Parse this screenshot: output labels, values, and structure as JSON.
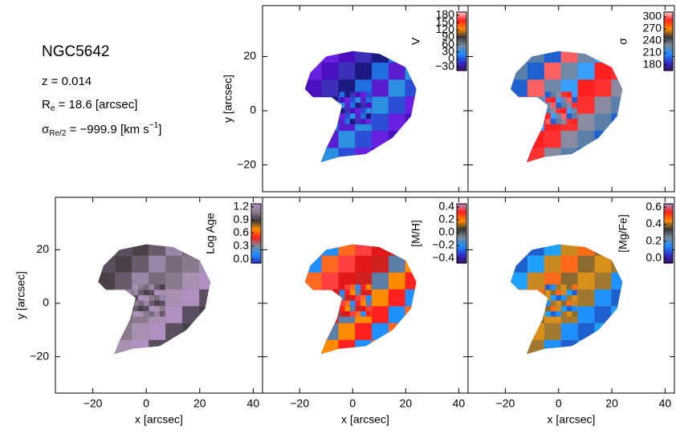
{
  "info": {
    "name": "NGC5642",
    "z": "z = 0.014",
    "re": {
      "symbol": "R",
      "sub": "e",
      "text": " = 18.6 [arcsec]"
    },
    "sigma": {
      "symbol": "σ",
      "sub": "Re/2",
      "text": " = −999.9 [km s",
      "sup": "−1",
      "end": "]"
    }
  },
  "chart_data": [
    {
      "type": "map",
      "colorbar_label": "V",
      "ylabel": "y [arcsec]",
      "xlim": [
        -34,
        43.5
      ],
      "ylim": [
        -29.9,
        38.8
      ],
      "xticks": [
        -20,
        0,
        20,
        40
      ],
      "yticks": [
        {
          "value": -20,
          "label": "−20"
        },
        0,
        20
      ],
      "show_xticklabels": false,
      "show_yticklabels": true,
      "clim": [
        -46,
        193
      ],
      "cticks": [
        {
          "value": -30,
          "label": "−30"
        },
        0,
        30,
        60,
        90,
        120,
        150,
        180
      ],
      "colormap": [
        "#3d0b6e",
        "#2f2fc8",
        "#1e90ff",
        "#7a8a9a",
        "#3a3a3a",
        "#ff8c00",
        "#ff2020",
        "#ffd0d0"
      ]
    },
    {
      "type": "map",
      "colorbar_label": "σ",
      "xlim": [
        -34,
        43.5
      ],
      "ylim": [
        -29.9,
        38.8
      ],
      "xticks": [
        -20,
        0,
        20,
        40
      ],
      "yticks": [
        -20,
        0,
        20
      ],
      "show_xticklabels": false,
      "show_yticklabels": false,
      "clim": [
        166,
        312
      ],
      "cticks": [
        180,
        210,
        240,
        270,
        300
      ],
      "colormap": [
        "#3d0b6e",
        "#2f2fc8",
        "#1e90ff",
        "#7a8a9a",
        "#3a3a3a",
        "#ff8c00",
        "#ff2020",
        "#ffd0d0"
      ]
    },
    {
      "type": "map",
      "colorbar_label": "Log Age",
      "xlabel": "x [arcsec]",
      "ylabel": "y [arcsec]",
      "xlim": [
        -34,
        43.5
      ],
      "ylim": [
        -33.6,
        39.6
      ],
      "xticks": [
        {
          "value": -20,
          "label": "−20"
        },
        0,
        20,
        40
      ],
      "yticks": [
        {
          "value": -20,
          "label": "−20"
        },
        0,
        20
      ],
      "show_xticklabels": true,
      "show_yticklabels": true,
      "clim": [
        -0.09,
        1.27
      ],
      "cticks": [
        {
          "value": 0,
          "label": "0.0"
        },
        0.3,
        0.6,
        0.9,
        1.2
      ],
      "colormap": [
        "#2f2fc8",
        "#1e90ff",
        "#7a8a9a",
        "#ff2020",
        "#ff8c00",
        "#3a3a3a",
        "#8a7a8c",
        "#b090c0"
      ]
    },
    {
      "type": "map",
      "colorbar_label": "[M/H]",
      "xlabel": "x [arcsec]",
      "xlim": [
        -34,
        43.5
      ],
      "ylim": [
        -33.6,
        39.6
      ],
      "xticks": [
        {
          "value": -20,
          "label": "−20"
        },
        0,
        20,
        40
      ],
      "yticks": [
        -20,
        0,
        20
      ],
      "show_xticklabels": true,
      "show_yticklabels": false,
      "clim": [
        -0.475,
        0.45
      ],
      "cticks": [
        {
          "value": -0.4,
          "label": "−0.4"
        },
        {
          "value": -0.2,
          "label": "−0.2"
        },
        {
          "value": 0,
          "label": "0.0"
        },
        0.2,
        0.4
      ],
      "colormap": [
        "#3d0b6e",
        "#2f2fc8",
        "#1e90ff",
        "#7a8a9a",
        "#3a3a3a",
        "#ff8c00",
        "#ff2020",
        "#b090c0"
      ]
    },
    {
      "type": "map",
      "colorbar_label": "[Mg/Fe]",
      "xlabel": "x [arcsec]",
      "xlim": [
        -34,
        43.5
      ],
      "ylim": [
        -33.6,
        39.6
      ],
      "xticks": [
        {
          "value": -20,
          "label": "−20"
        },
        0,
        20,
        40
      ],
      "yticks": [
        -20,
        0,
        20
      ],
      "show_xticklabels": true,
      "show_yticklabels": false,
      "clim": [
        -0.056,
        0.64
      ],
      "cticks": [
        {
          "value": 0,
          "label": "0.0"
        },
        0.2,
        0.4,
        0.6
      ],
      "colormap": [
        "#3d0b6e",
        "#2f2fc8",
        "#1e90ff",
        "#7a8a9a",
        "#3a3a3a",
        "#ff8c00",
        "#ff2020",
        "#b090c0"
      ]
    }
  ]
}
